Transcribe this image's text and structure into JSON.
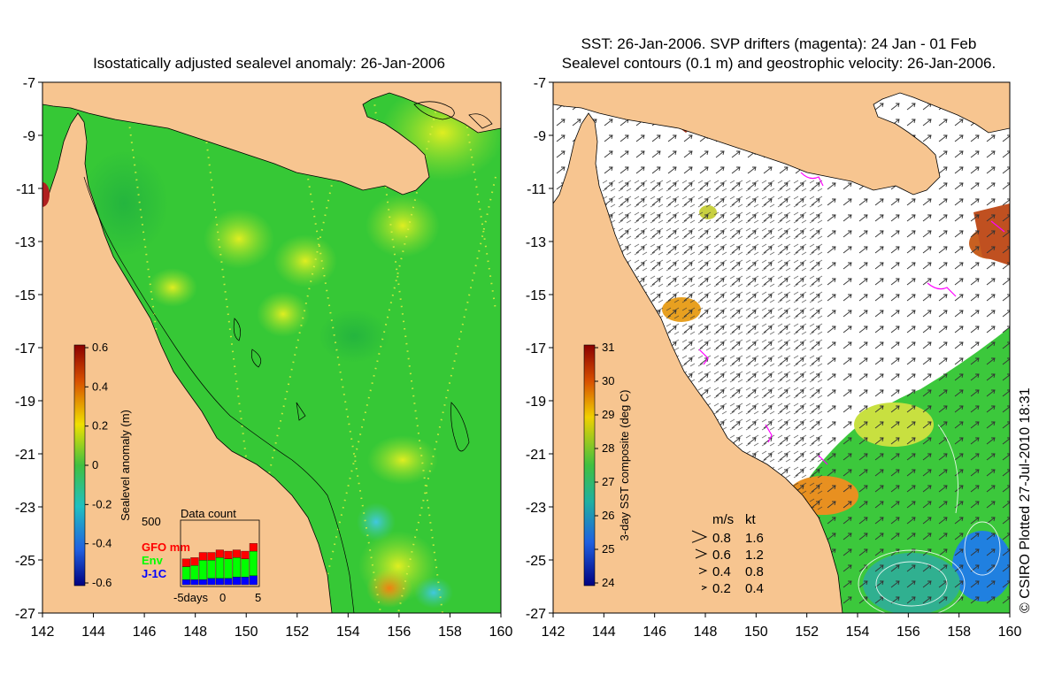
{
  "left_panel": {
    "title": "Isostatically adjusted sealevel anomaly: 26-Jan-2006",
    "colorbar": {
      "label": "Sealevel anomaly (m)",
      "ticks": [
        "0.6",
        "0.4",
        "0.2",
        "0",
        "-0.2",
        "-0.4",
        "-0.6"
      ]
    },
    "data_count": {
      "title": "Data count",
      "max_label": "500",
      "legend": [
        {
          "label": "GFO mm",
          "color": "#ff0000"
        },
        {
          "label": "Env",
          "color": "#00ff00"
        },
        {
          "label": "J-1C",
          "color": "#0000ff"
        }
      ],
      "x_axis_label": "-5days",
      "x_ticks": [
        "0",
        "5"
      ],
      "bars": [
        {
          "gfo": 0.12,
          "env": 0.2,
          "j1c": 0.08
        },
        {
          "gfo": 0.12,
          "env": 0.22,
          "j1c": 0.08
        },
        {
          "gfo": 0.12,
          "env": 0.3,
          "j1c": 0.08
        },
        {
          "gfo": 0.12,
          "env": 0.28,
          "j1c": 0.1
        },
        {
          "gfo": 0.12,
          "env": 0.32,
          "j1c": 0.1
        },
        {
          "gfo": 0.12,
          "env": 0.3,
          "j1c": 0.1
        },
        {
          "gfo": 0.12,
          "env": 0.3,
          "j1c": 0.12
        },
        {
          "gfo": 0.12,
          "env": 0.28,
          "j1c": 0.12
        },
        {
          "gfo": 0.12,
          "env": 0.38,
          "j1c": 0.14
        }
      ]
    }
  },
  "right_panel": {
    "title_line1": "SST: 26-Jan-2006. SVP drifters (magenta): 24 Jan - 01 Feb",
    "title_line2": "Sealevel contours (0.1 m) and geostrophic velocity: 26-Jan-2006.",
    "colorbar": {
      "label": "3-day SST composite (deg C)",
      "ticks": [
        "31",
        "30",
        "29",
        "28",
        "27",
        "26",
        "25",
        "24"
      ]
    },
    "velocity_legend": {
      "header_ms": "m/s",
      "header_kt": "kt",
      "rows": [
        {
          "ms": "0.8",
          "kt": "1.6"
        },
        {
          "ms": "0.6",
          "kt": "1.2"
        },
        {
          "ms": "0.4",
          "kt": "0.8"
        },
        {
          "ms": "0.2",
          "kt": "0.4"
        }
      ]
    },
    "credit": "© CSIRO Plotted 27-Jul-2010 18:31"
  },
  "axes": {
    "lat_ticks": [
      "-7",
      "-9",
      "-11",
      "-13",
      "-15",
      "-17",
      "-19",
      "-21",
      "-23",
      "-25",
      "-27"
    ],
    "lon_ticks": [
      "142",
      "144",
      "146",
      "148",
      "150",
      "152",
      "154",
      "156",
      "158",
      "160"
    ]
  },
  "colors": {
    "land": "#f7c590",
    "sea_base": "#33c933",
    "cloud_white": "#ffffff",
    "drifter": "#ff00ff"
  }
}
